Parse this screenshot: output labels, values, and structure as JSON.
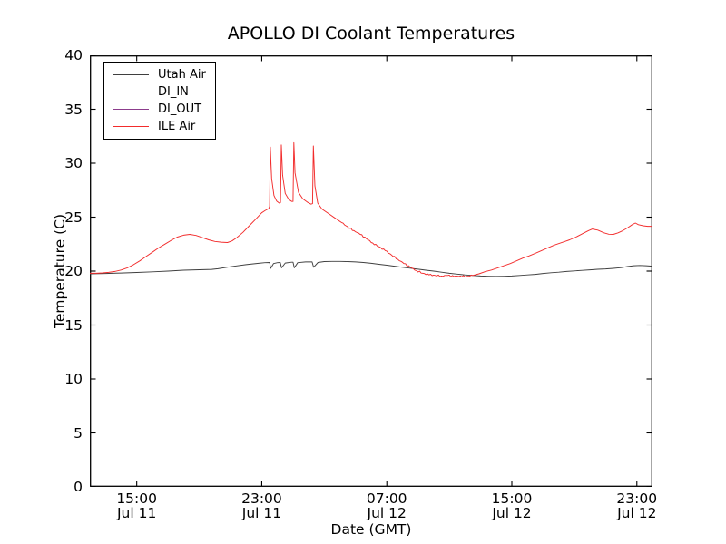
{
  "chart_data": {
    "type": "line",
    "title": "APOLLO DI Coolant Temperatures",
    "xlabel": "Date (GMT)",
    "ylabel": "Temperature (C)",
    "ylim": [
      0,
      40
    ],
    "xlim_hours": [
      0,
      36
    ],
    "x_axis_note": "hours measured from Jul 11 12:00 GMT",
    "grid": false,
    "legend_position": "upper-left",
    "yticks": [
      0,
      5,
      10,
      15,
      20,
      25,
      30,
      35,
      40
    ],
    "xticks": [
      {
        "h": 3,
        "time": "15:00",
        "date": "Jul 11"
      },
      {
        "h": 11,
        "time": "23:00",
        "date": "Jul 11"
      },
      {
        "h": 19,
        "time": "07:00",
        "date": "Jul 12"
      },
      {
        "h": 27,
        "time": "15:00",
        "date": "Jul 12"
      },
      {
        "h": 35,
        "time": "23:00",
        "date": "Jul 12"
      }
    ],
    "frame_color": "#000000",
    "series": [
      {
        "name": "Utah Air",
        "color": "#3f3f3f",
        "points": [
          [
            0,
            19.75
          ],
          [
            1,
            19.78
          ],
          [
            2,
            19.82
          ],
          [
            3,
            19.87
          ],
          [
            4,
            19.93
          ],
          [
            5,
            20.0
          ],
          [
            6,
            20.08
          ],
          [
            7,
            20.13
          ],
          [
            7.8,
            20.16
          ],
          [
            8.2,
            20.22
          ],
          [
            9,
            20.4
          ],
          [
            10,
            20.6
          ],
          [
            10.8,
            20.72
          ],
          [
            11.2,
            20.78
          ],
          [
            11.5,
            20.8
          ],
          [
            11.57,
            20.25
          ],
          [
            11.75,
            20.7
          ],
          [
            12,
            20.78
          ],
          [
            12.18,
            20.8
          ],
          [
            12.27,
            20.3
          ],
          [
            12.5,
            20.75
          ],
          [
            12.9,
            20.82
          ],
          [
            13.0,
            20.82
          ],
          [
            13.08,
            20.3
          ],
          [
            13.3,
            20.78
          ],
          [
            13.8,
            20.85
          ],
          [
            14.22,
            20.85
          ],
          [
            14.32,
            20.35
          ],
          [
            14.6,
            20.8
          ],
          [
            15,
            20.88
          ],
          [
            15.5,
            20.9
          ],
          [
            16,
            20.9
          ],
          [
            16.5,
            20.88
          ],
          [
            17,
            20.85
          ],
          [
            17.5,
            20.8
          ],
          [
            18,
            20.72
          ],
          [
            18.5,
            20.63
          ],
          [
            19,
            20.55
          ],
          [
            19.5,
            20.45
          ],
          [
            20,
            20.35
          ],
          [
            20.5,
            20.27
          ],
          [
            21,
            20.18
          ],
          [
            21.5,
            20.08
          ],
          [
            22,
            20.0
          ],
          [
            22.5,
            19.9
          ],
          [
            23,
            19.8
          ],
          [
            23.5,
            19.72
          ],
          [
            24,
            19.65
          ],
          [
            24.5,
            19.6
          ],
          [
            25,
            19.55
          ],
          [
            25.5,
            19.52
          ],
          [
            26,
            19.5
          ],
          [
            26.5,
            19.52
          ],
          [
            27,
            19.55
          ],
          [
            27.5,
            19.6
          ],
          [
            28,
            19.65
          ],
          [
            28.5,
            19.7
          ],
          [
            29,
            19.78
          ],
          [
            29.5,
            19.85
          ],
          [
            30,
            19.9
          ],
          [
            30.5,
            19.97
          ],
          [
            31,
            20.02
          ],
          [
            31.5,
            20.07
          ],
          [
            32,
            20.12
          ],
          [
            32.5,
            20.17
          ],
          [
            33,
            20.2
          ],
          [
            33.5,
            20.25
          ],
          [
            34,
            20.32
          ],
          [
            34.4,
            20.42
          ],
          [
            34.8,
            20.5
          ],
          [
            35.2,
            20.52
          ],
          [
            35.6,
            20.5
          ],
          [
            36,
            20.45
          ]
        ]
      },
      {
        "name": "DI_IN",
        "color": "#ffb347",
        "points": []
      },
      {
        "name": "DI_OUT",
        "color": "#8c3c8c",
        "points": []
      },
      {
        "name": "ILE Air",
        "color": "#f22c2c",
        "noisy_range": [
          16,
          24.5
        ],
        "noise_amplitude": 0.07,
        "points": [
          [
            0,
            19.8
          ],
          [
            0.4,
            19.8
          ],
          [
            0.8,
            19.83
          ],
          [
            1.2,
            19.88
          ],
          [
            1.6,
            19.97
          ],
          [
            2,
            20.1
          ],
          [
            2.4,
            20.3
          ],
          [
            2.8,
            20.6
          ],
          [
            3.2,
            20.95
          ],
          [
            3.6,
            21.35
          ],
          [
            4,
            21.75
          ],
          [
            4.4,
            22.15
          ],
          [
            4.8,
            22.5
          ],
          [
            5.2,
            22.85
          ],
          [
            5.6,
            23.15
          ],
          [
            6,
            23.33
          ],
          [
            6.4,
            23.4
          ],
          [
            6.8,
            23.3
          ],
          [
            7.2,
            23.1
          ],
          [
            7.6,
            22.9
          ],
          [
            8,
            22.75
          ],
          [
            8.4,
            22.68
          ],
          [
            8.8,
            22.65
          ],
          [
            9.1,
            22.8
          ],
          [
            9.4,
            23.1
          ],
          [
            9.8,
            23.6
          ],
          [
            10.2,
            24.2
          ],
          [
            10.6,
            24.8
          ],
          [
            11,
            25.4
          ],
          [
            11.2,
            25.6
          ],
          [
            11.35,
            25.72
          ],
          [
            11.45,
            25.8
          ],
          [
            11.5,
            26.0
          ],
          [
            11.55,
            31.5
          ],
          [
            11.63,
            28.6
          ],
          [
            11.78,
            27.0
          ],
          [
            11.95,
            26.5
          ],
          [
            12.12,
            26.3
          ],
          [
            12.2,
            26.35
          ],
          [
            12.25,
            31.7
          ],
          [
            12.33,
            28.9
          ],
          [
            12.5,
            27.2
          ],
          [
            12.72,
            26.65
          ],
          [
            12.92,
            26.45
          ],
          [
            13,
            26.45
          ],
          [
            13.05,
            31.9
          ],
          [
            13.13,
            29.1
          ],
          [
            13.35,
            27.3
          ],
          [
            13.62,
            26.7
          ],
          [
            13.9,
            26.4
          ],
          [
            14.15,
            26.2
          ],
          [
            14.25,
            26.25
          ],
          [
            14.3,
            31.6
          ],
          [
            14.4,
            27.9
          ],
          [
            14.58,
            26.3
          ],
          [
            14.85,
            25.75
          ],
          [
            15.3,
            25.3
          ],
          [
            15.7,
            24.9
          ],
          [
            16.1,
            24.5
          ],
          [
            16.5,
            24.1
          ],
          [
            16.9,
            23.75
          ],
          [
            17.3,
            23.4
          ],
          [
            17.7,
            23.0
          ],
          [
            18.1,
            22.6
          ],
          [
            18.5,
            22.25
          ],
          [
            18.9,
            21.9
          ],
          [
            19.3,
            21.5
          ],
          [
            19.7,
            21.1
          ],
          [
            20.1,
            20.7
          ],
          [
            20.5,
            20.35
          ],
          [
            20.9,
            20.05
          ],
          [
            21.3,
            19.8
          ],
          [
            21.7,
            19.65
          ],
          [
            22.1,
            19.6
          ],
          [
            22.5,
            19.55
          ],
          [
            22.9,
            19.6
          ],
          [
            23.3,
            19.5
          ],
          [
            23.7,
            19.55
          ],
          [
            24.1,
            19.5
          ],
          [
            24.5,
            19.6
          ],
          [
            24.9,
            19.75
          ],
          [
            25.3,
            19.95
          ],
          [
            25.7,
            20.1
          ],
          [
            26.1,
            20.3
          ],
          [
            26.5,
            20.5
          ],
          [
            26.9,
            20.7
          ],
          [
            27.3,
            20.95
          ],
          [
            27.7,
            21.2
          ],
          [
            28.1,
            21.4
          ],
          [
            28.5,
            21.65
          ],
          [
            28.9,
            21.9
          ],
          [
            29.3,
            22.15
          ],
          [
            29.7,
            22.4
          ],
          [
            30.1,
            22.6
          ],
          [
            30.4,
            22.75
          ],
          [
            30.7,
            22.9
          ],
          [
            31.1,
            23.15
          ],
          [
            31.5,
            23.45
          ],
          [
            31.9,
            23.75
          ],
          [
            32.15,
            23.9
          ],
          [
            32.5,
            23.8
          ],
          [
            32.9,
            23.55
          ],
          [
            33.2,
            23.42
          ],
          [
            33.5,
            23.4
          ],
          [
            33.8,
            23.55
          ],
          [
            34.1,
            23.75
          ],
          [
            34.4,
            24.0
          ],
          [
            34.7,
            24.3
          ],
          [
            34.9,
            24.45
          ],
          [
            35.1,
            24.3
          ],
          [
            35.4,
            24.2
          ],
          [
            35.7,
            24.15
          ],
          [
            36,
            24.15
          ]
        ]
      }
    ]
  }
}
